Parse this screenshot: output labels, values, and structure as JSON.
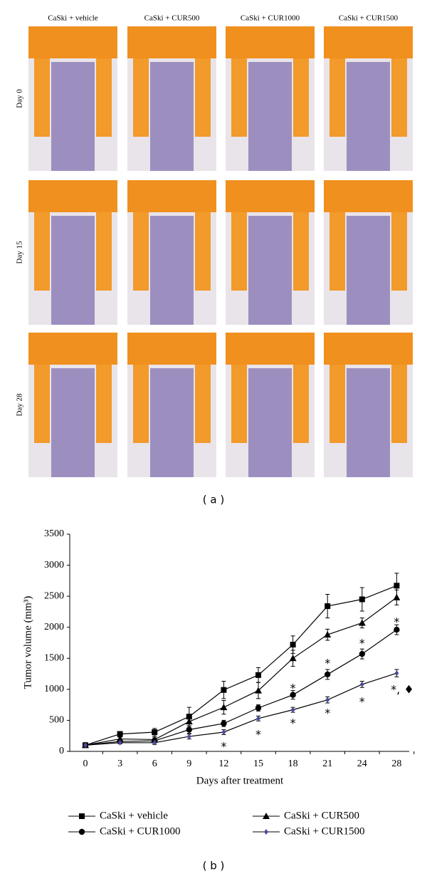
{
  "figure": {
    "columns": [
      "CaSki + vehicle",
      "CaSki + CUR500",
      "CaSki + CUR1000",
      "CaSki + CUR1500"
    ],
    "rows": [
      "Day 0",
      "Day 15",
      "Day 28"
    ],
    "panel_a": "( a )",
    "panel_b": "( b )"
  },
  "chart_data": {
    "type": "line",
    "xlabel": "Days after treatment",
    "ylabel": "Tumor volume (mm³)",
    "categories": [
      "0",
      "3",
      "6",
      "9",
      "12",
      "15",
      "18",
      "21",
      "24",
      "28"
    ],
    "ylim": [
      0,
      3500
    ],
    "yticks": [
      0,
      500,
      1000,
      1500,
      2000,
      2500,
      3000,
      3500
    ],
    "series": [
      {
        "name": "CaSki + vehicle",
        "color": "#000000",
        "marker": "square",
        "values": [
          100,
          280,
          310,
          560,
          990,
          1230,
          1720,
          2340,
          2450,
          2670
        ],
        "errors": [
          20,
          40,
          60,
          150,
          140,
          120,
          140,
          190,
          190,
          200
        ]
      },
      {
        "name": "CaSki + CUR500",
        "color": "#000000",
        "marker": "triangle",
        "values": [
          100,
          200,
          190,
          480,
          710,
          980,
          1500,
          1880,
          2070,
          2480
        ],
        "errors": [
          20,
          30,
          40,
          100,
          110,
          130,
          130,
          90,
          80,
          120
        ]
      },
      {
        "name": "CaSki + CUR1000",
        "color": "#000000",
        "marker": "circle",
        "values": [
          100,
          160,
          170,
          350,
          450,
          700,
          910,
          1240,
          1570,
          1960
        ],
        "errors": [
          20,
          30,
          40,
          60,
          50,
          50,
          70,
          80,
          80,
          80
        ]
      },
      {
        "name": "CaSki + CUR1500",
        "color": "#4b4b9b",
        "marker": "diamond",
        "values": [
          100,
          140,
          140,
          240,
          310,
          530,
          670,
          830,
          1080,
          1260
        ],
        "errors": [
          20,
          20,
          30,
          40,
          40,
          40,
          40,
          50,
          50,
          60
        ]
      }
    ],
    "annotations": [
      {
        "text": "*",
        "x": "12",
        "y": 115
      },
      {
        "text": "*",
        "x": "15",
        "y": 310
      },
      {
        "text": "*",
        "x": "18",
        "y": 494
      },
      {
        "text": "*",
        "x": "21",
        "y": 654
      },
      {
        "text": "*",
        "x": "24",
        "y": 838
      },
      {
        "text": "*, ♦",
        "x": "28",
        "y": 1033
      },
      {
        "text": "*",
        "x": "18",
        "y": 1056
      },
      {
        "text": "*",
        "x": "21",
        "y": 1458
      },
      {
        "text": "*",
        "x": "24",
        "y": 1780
      },
      {
        "text": "*",
        "x": "28",
        "y": 2124
      }
    ]
  }
}
